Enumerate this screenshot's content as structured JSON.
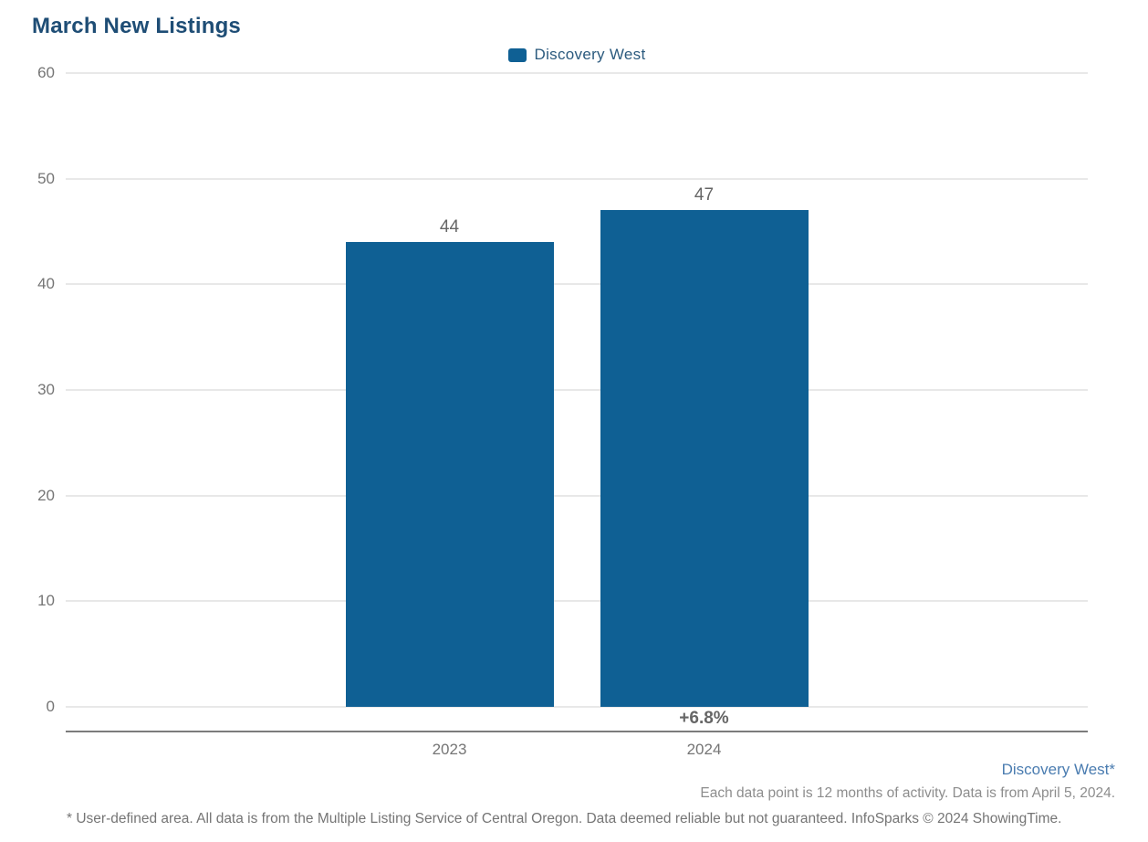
{
  "title": "March New Listings",
  "legend": {
    "label": "Discovery West",
    "swatch_color": "#0f6094"
  },
  "chart_data": {
    "type": "bar",
    "title": "March New Listings",
    "categories": [
      "2023",
      "2024"
    ],
    "series": [
      {
        "name": "Discovery West",
        "values": [
          44,
          47
        ]
      }
    ],
    "data_labels": [
      "44",
      "47"
    ],
    "change_label": {
      "text": "+6.8%",
      "category": "2024"
    },
    "xlabel": "",
    "ylabel": "",
    "ylim": [
      0,
      60
    ],
    "yticks": [
      0,
      10,
      20,
      30,
      40,
      50,
      60
    ],
    "grid": true,
    "legend_position": "top-center",
    "bar_color": "#0f6094"
  },
  "footer": {
    "area_label": "Discovery West*",
    "data_note": "Each data point is 12 months of activity. Data is from April 5, 2024.",
    "disclaimer": "* User-defined area. All data is from the Multiple Listing Service of Central Oregon. Data deemed reliable but not guaranteed. InfoSparks © 2024 ShowingTime."
  },
  "colors": {
    "title_text": "#1e4d75",
    "bar": "#0f6094",
    "legend_text": "#2b5a7e",
    "footer_link": "#4a7cb0",
    "axis_text": "#757575",
    "value_text": "#666666",
    "gridline": "#e8e8e8",
    "axis_line": "#7b7b7b"
  }
}
